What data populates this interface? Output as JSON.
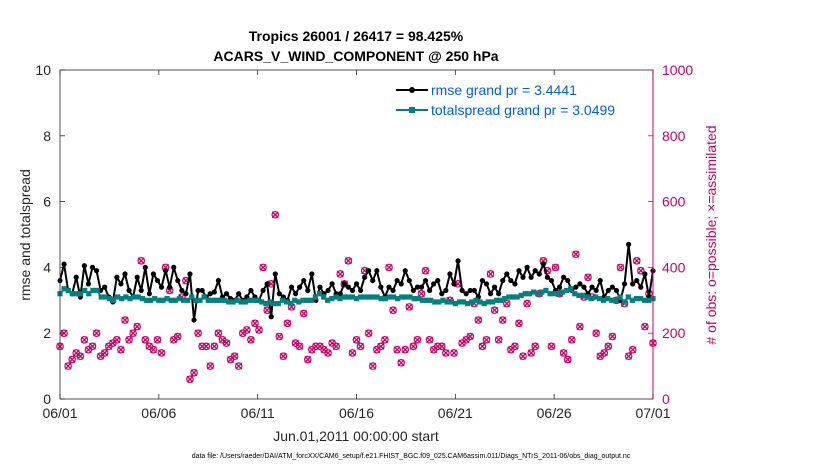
{
  "chart_data": {
    "type": "line",
    "title": "Tropics 26001 / 26417 = 98.425%",
    "subtitle": "ACARS_V_WIND_COMPONENT @ 250 hPa",
    "xlabel": "Jun.01,2011 00:00:00 start",
    "ylabel": "rmse and totalspread",
    "ylabel_right": "# of obs: o=possible; ×=assimilated",
    "footnote": "data file: /Users/raeder/DAI/ATM_forcXX/CAM6_setup/f.e21.FHIST_BGC.f09_025.CAM6assim.011/Diags_NTrS_2011-06/obs_diag_output.nc",
    "xlim": [
      0,
      30
    ],
    "ylim": [
      0,
      10
    ],
    "ylim_right": [
      0,
      1000
    ],
    "x_ticks": [
      0,
      5,
      10,
      15,
      20,
      25,
      30
    ],
    "x_tick_labels": [
      "06/01",
      "06/06",
      "06/11",
      "06/16",
      "06/21",
      "06/26",
      "07/01"
    ],
    "y_ticks": [
      0,
      2,
      4,
      6,
      8,
      10
    ],
    "y_tick_labels": [
      "0",
      "2",
      "4",
      "6",
      "8",
      "10"
    ],
    "y_right_ticks": [
      0,
      200,
      400,
      600,
      800,
      1000
    ],
    "y_right_tick_labels": [
      "0",
      "200",
      "400",
      "600",
      "800",
      "1000"
    ],
    "legend_position": "top-right",
    "series": [
      {
        "name": "rmse grand pr = 3.4441",
        "color": "#000000",
        "values": [
          3.6,
          4.1,
          3.3,
          3.2,
          3.7,
          3.1,
          4.05,
          3.5,
          4.0,
          3.9,
          3.3,
          3.4,
          3.1,
          2.95,
          3.7,
          3.5,
          3.8,
          3.3,
          3.1,
          3.7,
          3.3,
          4.0,
          3.2,
          3.8,
          3.6,
          3.4,
          3.9,
          3.4,
          4.0,
          3.6,
          3.3,
          3.2,
          3.8,
          2.4,
          3.3,
          3.3,
          3.1,
          3.2,
          3.25,
          3.6,
          3.1,
          3.2,
          3.05,
          3.0,
          3.2,
          3.0,
          3.1,
          3.3,
          3.1,
          3.0,
          3.3,
          3.5,
          2.5,
          3.8,
          3.2,
          3.1,
          3.0,
          3.4,
          3.2,
          3.4,
          3.6,
          3.3,
          3.8,
          3.0,
          3.4,
          3.2,
          3.3,
          3.5,
          3.2,
          3.2,
          3.5,
          3.4,
          3.3,
          3.5,
          3.3,
          3.7,
          3.9,
          3.6,
          3.9,
          3.4,
          3.1,
          3.4,
          3.3,
          3.6,
          3.5,
          3.9,
          3.6,
          3.3,
          3.4,
          3.4,
          3.6,
          3.3,
          3.5,
          3.6,
          3.2,
          3.3,
          3.8,
          3.5,
          4.2,
          3.3,
          3.2,
          3.3,
          3.3,
          3.1,
          3.6,
          3.5,
          3.2,
          3.4,
          3.2,
          3.6,
          3.8,
          3.6,
          3.5,
          3.9,
          3.7,
          4.0,
          3.7,
          3.9,
          3.8,
          4.1,
          3.7,
          3.6,
          3.3,
          3.4,
          3.7,
          3.6,
          3.3,
          3.4,
          3.5,
          3.4,
          3.2,
          3.4,
          3.3,
          3.6,
          3.1,
          3.3,
          3.4,
          3.3,
          3.0,
          3.5,
          4.7,
          3.5,
          3.6,
          3.4,
          3.8,
          3.1,
          3.9
        ]
      },
      {
        "name": "totalspread grand pr = 3.0499",
        "color": "#008080",
        "values": [
          3.2,
          3.35,
          3.3,
          3.2,
          3.2,
          3.2,
          3.3,
          3.2,
          3.3,
          3.3,
          3.1,
          3.1,
          3.05,
          3.0,
          3.1,
          3.05,
          3.1,
          3.05,
          3.1,
          3.1,
          3.05,
          3.0,
          3.0,
          3.05,
          3.0,
          3.0,
          3.05,
          3.0,
          3.0,
          3.05,
          3.0,
          3.0,
          3.1,
          3.0,
          3.0,
          3.1,
          3.0,
          3.0,
          3.0,
          3.0,
          3.0,
          2.95,
          2.95,
          3.0,
          2.95,
          2.95,
          3.0,
          3.0,
          3.0,
          2.95,
          2.9,
          2.95,
          2.9,
          2.9,
          3.0,
          2.95,
          2.9,
          3.0,
          2.95,
          3.0,
          3.0,
          3.0,
          3.1,
          3.2,
          3.1,
          3.0,
          3.05,
          3.1,
          3.05,
          3.1,
          3.1,
          3.1,
          3.05,
          3.1,
          3.1,
          3.1,
          3.1,
          3.1,
          3.05,
          3.05,
          3.1,
          3.1,
          3.05,
          3.1,
          3.1,
          3.1,
          3.05,
          3.05,
          3.0,
          3.0,
          3.0,
          2.95,
          2.95,
          3.0,
          2.95,
          2.95,
          2.9,
          2.95,
          2.95,
          2.9,
          2.95,
          3.0,
          2.95,
          2.9,
          2.95,
          2.95,
          3.0,
          3.0,
          3.05,
          3.1,
          3.1,
          3.1,
          3.15,
          3.2,
          3.2,
          3.25,
          3.2,
          3.25,
          3.3,
          3.2,
          3.2,
          3.2,
          3.25,
          3.3,
          3.35,
          3.2,
          3.15,
          3.15,
          3.1,
          3.05,
          3.1,
          3.05,
          3.0,
          3.05,
          3.0,
          3.0,
          3.1,
          2.95,
          3.1,
          3.0,
          3.05,
          3.05,
          3.0,
          3.0,
          3.05
        ]
      }
    ],
    "obs_counts": {
      "possible_color": "#cc0066",
      "assimilated_color": "#cc0066",
      "possible": [
        160,
        200,
        100,
        120,
        140,
        130,
        180,
        150,
        160,
        200,
        130,
        140,
        160,
        170,
        180,
        150,
        240,
        180,
        200,
        220,
        420,
        180,
        160,
        150,
        180,
        140,
        400,
        330,
        180,
        190,
        310,
        360,
        60,
        80,
        200,
        160,
        160,
        100,
        160,
        200,
        180,
        170,
        120,
        130,
        100,
        200,
        210,
        180,
        230,
        210,
        400,
        270,
        350,
        560,
        190,
        130,
        230,
        280,
        170,
        160,
        260,
        120,
        150,
        160,
        160,
        150,
        140,
        170,
        160,
        380,
        350,
        420,
        140,
        180,
        160,
        390,
        200,
        100,
        150,
        160,
        180,
        400,
        270,
        150,
        110,
        150,
        280,
        160,
        180,
        320,
        390,
        180,
        150,
        160,
        160,
        140,
        300,
        140,
        350,
        170,
        180,
        190,
        290,
        240,
        160,
        180,
        380,
        270,
        180,
        240,
        290,
        150,
        160,
        230,
        130,
        290,
        140,
        160,
        320,
        420,
        390,
        160,
        400,
        320,
        140,
        120,
        180,
        440,
        220,
        310,
        370,
        310,
        200,
        130,
        140,
        160,
        190,
        300,
        400,
        290,
        130,
        150,
        420,
        390,
        220,
        320,
        170
      ]
    }
  }
}
